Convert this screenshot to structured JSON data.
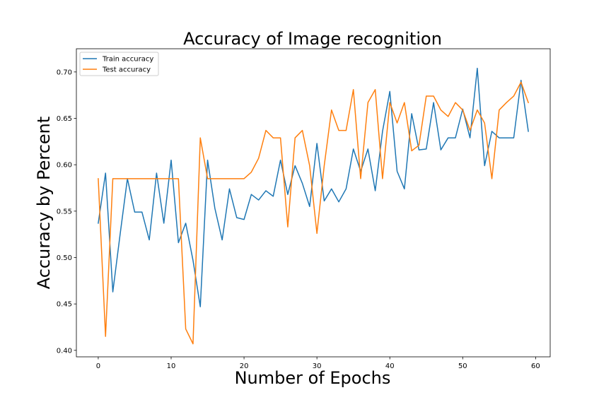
{
  "chart_data": {
    "type": "line",
    "title": "Accuracy of Image recognition",
    "xlabel": "Number of Epochs",
    "ylabel": "Accuracy by Percent",
    "xlim": [
      -3,
      62
    ],
    "ylim": [
      0.393,
      0.725
    ],
    "xticks": [
      0,
      10,
      20,
      30,
      40,
      50,
      60
    ],
    "yticks": [
      0.4,
      0.45,
      0.5,
      0.55,
      0.6,
      0.65,
      0.7
    ],
    "xtick_labels": [
      "0",
      "10",
      "20",
      "30",
      "40",
      "50",
      "60"
    ],
    "ytick_labels": [
      "0.40",
      "0.45",
      "0.50",
      "0.55",
      "0.60",
      "0.65",
      "0.70"
    ],
    "grid": false,
    "legend_position": "top-left",
    "x": [
      0,
      1,
      2,
      3,
      4,
      5,
      6,
      7,
      8,
      9,
      10,
      11,
      12,
      13,
      14,
      15,
      16,
      17,
      18,
      19,
      20,
      21,
      22,
      23,
      24,
      25,
      26,
      27,
      28,
      29,
      30,
      31,
      32,
      33,
      34,
      35,
      36,
      37,
      38,
      39,
      40,
      41,
      42,
      43,
      44,
      45,
      46,
      47,
      48,
      49,
      50,
      51,
      52,
      53,
      54,
      55,
      56,
      57,
      58,
      59
    ],
    "series": [
      {
        "name": "Train accuracy",
        "color": "#1f77b4",
        "values": [
          0.537,
          0.591,
          0.463,
          0.525,
          0.585,
          0.549,
          0.549,
          0.519,
          0.591,
          0.537,
          0.605,
          0.516,
          0.537,
          0.497,
          0.447,
          0.605,
          0.553,
          0.519,
          0.574,
          0.543,
          0.541,
          0.568,
          0.562,
          0.572,
          0.566,
          0.605,
          0.568,
          0.599,
          0.58,
          0.555,
          0.623,
          0.561,
          0.574,
          0.56,
          0.574,
          0.617,
          0.593,
          0.617,
          0.572,
          0.636,
          0.679,
          0.593,
          0.574,
          0.655,
          0.616,
          0.617,
          0.667,
          0.616,
          0.629,
          0.629,
          0.66,
          0.629,
          0.704,
          0.599,
          0.636,
          0.629,
          0.629,
          0.629,
          0.691,
          0.636
        ]
      },
      {
        "name": "Test accuracy",
        "color": "#ff7f0e",
        "values": [
          0.585,
          0.415,
          0.585,
          0.585,
          0.585,
          0.585,
          0.585,
          0.585,
          0.585,
          0.585,
          0.585,
          0.585,
          0.423,
          0.407,
          0.629,
          0.585,
          0.585,
          0.585,
          0.585,
          0.585,
          0.585,
          0.592,
          0.607,
          0.637,
          0.629,
          0.629,
          0.533,
          0.629,
          0.637,
          0.599,
          0.526,
          0.599,
          0.659,
          0.637,
          0.637,
          0.681,
          0.585,
          0.667,
          0.681,
          0.585,
          0.667,
          0.645,
          0.667,
          0.615,
          0.621,
          0.674,
          0.674,
          0.659,
          0.652,
          0.667,
          0.659,
          0.637,
          0.659,
          0.645,
          0.585,
          0.659,
          0.667,
          0.674,
          0.689,
          0.667
        ]
      }
    ]
  }
}
